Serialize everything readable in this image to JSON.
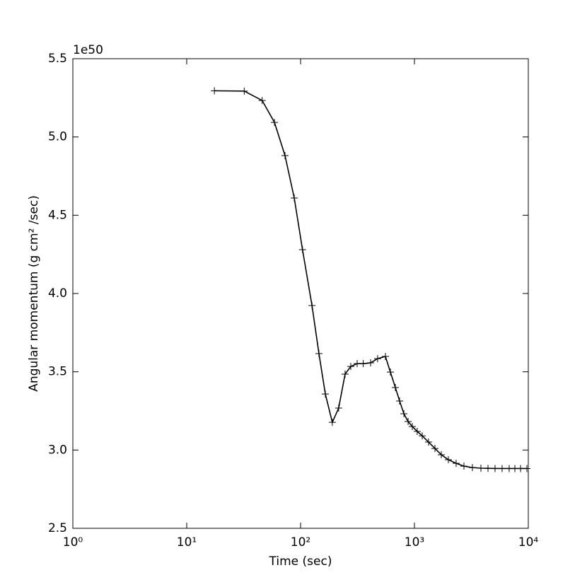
{
  "chart_data": {
    "type": "line",
    "x_label": "Time (sec)",
    "y_label": "Angular momentum (g cm² /sec)",
    "y_offset_label": "1e50",
    "x_log": true,
    "marker": "+",
    "color": "#000000",
    "xlim": [
      1,
      10000
    ],
    "xticks": [
      {
        "value": 1,
        "label": "10⁰"
      },
      {
        "value": 10,
        "label": "10¹"
      },
      {
        "value": 100,
        "label": "10²"
      },
      {
        "value": 1000,
        "label": "10³"
      },
      {
        "value": 10000,
        "label": "10⁴"
      }
    ],
    "ylim": [
      2.5,
      5.5
    ],
    "yticks": [
      {
        "value": 2.5,
        "label": "2.5"
      },
      {
        "value": 3,
        "label": "3.0"
      },
      {
        "value": 3.5,
        "label": "3.5"
      },
      {
        "value": 4,
        "label": "4.0"
      },
      {
        "value": 4.5,
        "label": "4.5"
      },
      {
        "value": 5,
        "label": "5.0"
      },
      {
        "value": 5.5,
        "label": "5.5"
      }
    ],
    "x": [
      17.5,
      32,
      46,
      59,
      73,
      88,
      104,
      126,
      145,
      165,
      190,
      216,
      246,
      276,
      314,
      355,
      412,
      475,
      556,
      615,
      680,
      741,
      808,
      880,
      958,
      1058,
      1170,
      1330,
      1514,
      1722,
      1986,
      2324,
      2722,
      3229,
      3836,
      4426,
      5104,
      5888,
      6792,
      7622,
      8551,
      9726
    ],
    "values": [
      5.295,
      5.293,
      5.233,
      5.093,
      4.881,
      4.61,
      4.28,
      3.923,
      3.616,
      3.358,
      3.177,
      3.268,
      3.485,
      3.534,
      3.552,
      3.552,
      3.557,
      3.584,
      3.598,
      3.498,
      3.399,
      3.313,
      3.232,
      3.182,
      3.15,
      3.119,
      3.091,
      3.051,
      3.01,
      2.97,
      2.938,
      2.915,
      2.897,
      2.888,
      2.884,
      2.883,
      2.882,
      2.882,
      2.882,
      2.882,
      2.882,
      2.882
    ]
  }
}
